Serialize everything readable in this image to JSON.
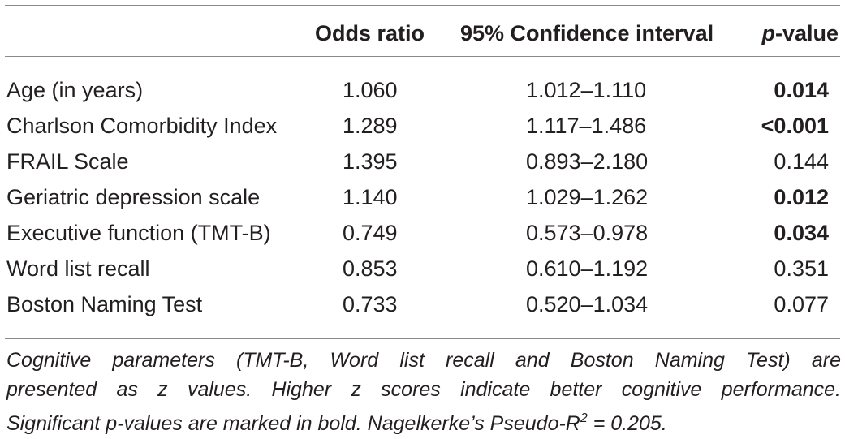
{
  "table": {
    "headers": {
      "odds_ratio": "Odds ratio",
      "ci": "95% Confidence interval",
      "p_italic": "p",
      "p_rest": "-value"
    },
    "rows": [
      {
        "label": "Age (in years)",
        "or": "1.060",
        "ci": "1.012–1.110",
        "p": "0.014",
        "bold": true
      },
      {
        "label": "Charlson Comorbidity Index",
        "or": "1.289",
        "ci": "1.117–1.486",
        "p": "<0.001",
        "bold": true
      },
      {
        "label": "FRAIL Scale",
        "or": "1.395",
        "ci": "0.893–2.180",
        "p": "0.144",
        "bold": false
      },
      {
        "label": "Geriatric depression scale",
        "or": "1.140",
        "ci": "1.029–1.262",
        "p": "0.012",
        "bold": true
      },
      {
        "label": "Executive function (TMT-B)",
        "or": "0.749",
        "ci": "0.573–0.978",
        "p": "0.034",
        "bold": true
      },
      {
        "label": "Word list recall",
        "or": "0.853",
        "ci": "0.610–1.192",
        "p": "0.351",
        "bold": false
      },
      {
        "label": "Boston Naming Test",
        "or": "0.733",
        "ci": "0.520–1.034",
        "p": "0.077",
        "bold": false
      }
    ]
  },
  "footnote": {
    "line1": "Cognitive parameters (TMT-B, Word list recall and Boston Naming Test) are",
    "line2": "presented as z values. Higher z scores indicate better cognitive performance.",
    "line3_pre": "Significant p-values are marked in bold. Nagelkerke’s Pseudo-R",
    "line3_sup": "2",
    "line3_post": " = 0.205."
  }
}
